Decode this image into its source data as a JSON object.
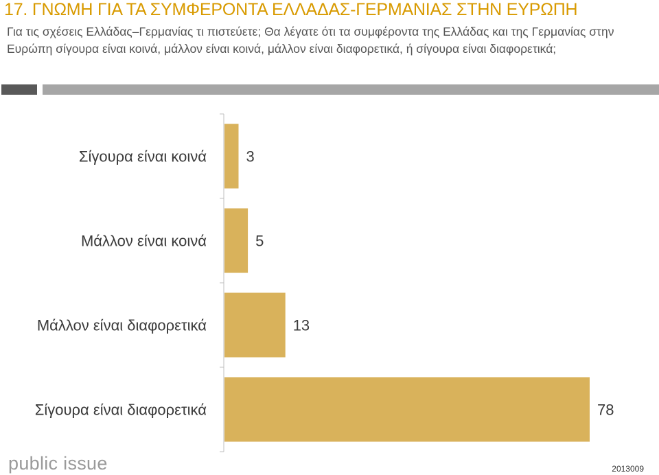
{
  "header": {
    "title": "17. ΓΝΩΜΗ ΓΙΑ ΤΑ ΣΥΜΦΕΡΟΝΤΑ ΕΛΛΑΔΑΣ-ΓΕΡΜΑΝΙΑΣ  ΣΤΗΝ ΕΥΡΩΠΗ",
    "question": "Για τις σχέσεις Ελλάδας–Γερμανίας τι πιστεύετε; Θα λέγατε ότι τα συμφέροντα της Ελλάδας και της Γερμανίας στην Ευρώπη σίγουρα είναι κοινά, μάλλον είναι κοινά, μάλλον είναι διαφορετικά, ή σίγουρα είναι διαφορετικά;"
  },
  "footer": {
    "logo": "public issue",
    "code": "2013009"
  },
  "colors": {
    "title": "#d89a00",
    "bar": "#d9b25b",
    "text": "#3a3a3a",
    "axis": "#bfbfbf"
  },
  "chart_data": {
    "type": "bar",
    "orientation": "horizontal",
    "categories": [
      "Σίγουρα είναι κοινά",
      "Μάλλον είναι κοινά",
      "Μάλλον είναι διαφορετικά",
      "Σίγουρα είναι διαφορετικά"
    ],
    "values": [
      3,
      5,
      13,
      78
    ],
    "value_labels": [
      "3",
      "5",
      "13",
      "78"
    ],
    "xlim": [
      0,
      80
    ],
    "grid": false,
    "legend": "none"
  }
}
